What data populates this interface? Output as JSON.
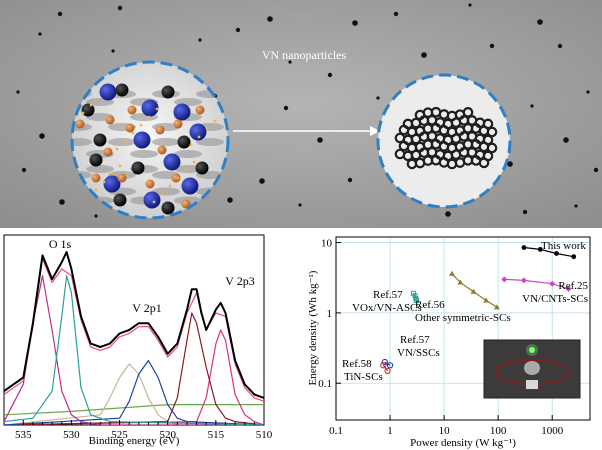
{
  "panel_top": {
    "caption": "VN nanoparticles"
  },
  "chart_data": [
    {
      "type": "line",
      "xlabel": "Binding energy (eV)",
      "ylabel": "",
      "x_reversed": true,
      "xlim": [
        537,
        510
      ],
      "x_ticks": [
        535,
        530,
        525,
        520,
        515,
        510
      ],
      "peak_labels": [
        "O 1s",
        "V 2p1",
        "V 2p3"
      ],
      "series": [
        {
          "color": "#000000",
          "x": [
            537,
            535,
            534,
            533,
            532,
            531,
            530.5,
            530,
            529,
            528,
            527,
            526,
            525,
            524,
            523,
            522,
            521,
            520,
            519,
            518,
            517.5,
            517,
            516.5,
            516,
            515,
            514.5,
            514,
            513,
            512,
            511,
            510
          ],
          "y": [
            10,
            14,
            30,
            50,
            43,
            48,
            51,
            46,
            32,
            24,
            23,
            24,
            27,
            28,
            30,
            30,
            26,
            21,
            24,
            34,
            40,
            40,
            33,
            28,
            34,
            36,
            33,
            19,
            12,
            9,
            8
          ]
        },
        {
          "color": "#e84a8a",
          "x": [
            537,
            535,
            534,
            533,
            532,
            531,
            530,
            529,
            528,
            527,
            526,
            525,
            524,
            523,
            522,
            521,
            520,
            519,
            518,
            517,
            516,
            515,
            514,
            513,
            512,
            511,
            510
          ],
          "y": [
            9,
            13,
            29,
            49,
            42,
            46,
            44,
            31,
            23,
            22,
            23,
            26,
            27,
            29,
            29,
            25,
            20,
            23,
            33,
            39,
            28,
            33,
            32,
            18,
            11,
            8,
            7
          ]
        },
        {
          "color": "#2aa198",
          "x": [
            537,
            534,
            532,
            531,
            530.5,
            530,
            529.5,
            529,
            528,
            526,
            510
          ],
          "y": [
            1,
            2,
            10,
            32,
            44,
            39,
            25,
            11,
            3,
            1,
            0
          ]
        },
        {
          "color": "#c02c8f",
          "x": [
            537,
            535,
            534,
            533,
            532,
            531,
            530,
            529,
            527,
            510
          ],
          "y": [
            1,
            12,
            30,
            44,
            28,
            10,
            3,
            1,
            0,
            0
          ]
        },
        {
          "color": "#1f3fb0",
          "x": [
            537,
            525,
            524,
            523,
            522,
            521,
            520,
            519,
            518,
            510
          ],
          "y": [
            0,
            2,
            7,
            15,
            19,
            14,
            6,
            2,
            1,
            0
          ]
        },
        {
          "color": "#c7b98a",
          "x": [
            537,
            527,
            526,
            525,
            524,
            523,
            522,
            521,
            520,
            519,
            510
          ],
          "y": [
            0,
            3,
            8,
            14,
            18,
            15,
            8,
            3,
            1,
            0,
            0
          ]
        },
        {
          "color": "#8b1a1a",
          "x": [
            537,
            520,
            519,
            518,
            517.5,
            517,
            516,
            515,
            514,
            513,
            510
          ],
          "y": [
            0,
            1,
            8,
            25,
            33,
            30,
            17,
            6,
            2,
            1,
            0
          ]
        },
        {
          "color": "#d63384",
          "x": [
            537,
            517,
            516,
            515,
            514.5,
            514,
            513,
            512,
            511,
            510
          ],
          "y": [
            0,
            1,
            8,
            24,
            28,
            25,
            9,
            3,
            1,
            0
          ]
        },
        {
          "color": "#6aa84f",
          "x": [
            537,
            530,
            525,
            520,
            515,
            510
          ],
          "y": [
            3,
            4,
            5,
            6,
            6,
            6
          ]
        }
      ]
    },
    {
      "type": "scatter",
      "xlabel": "Power density (W kg⁻¹)",
      "ylabel": "Energy density (Wh kg⁻¹)",
      "x_scale": "log",
      "y_scale": "log",
      "xlim": [
        0.1,
        5000
      ],
      "ylim": [
        0.03,
        12
      ],
      "x_ticks": [
        "0.1",
        "1",
        "10",
        "100",
        "1000"
      ],
      "y_ticks": [
        "0.1",
        "1",
        "10"
      ],
      "grid": true,
      "series": [
        {
          "color": "#000000",
          "label": "This work",
          "x": [
            300,
            600,
            1200,
            2500
          ],
          "y": [
            8.5,
            8,
            7,
            6.3
          ]
        },
        {
          "color": "#cc44cc",
          "label": "VN/CNTs-SCs",
          "ref": "Ref.25",
          "x": [
            130,
            300,
            1000,
            2000
          ],
          "y": [
            3,
            2.9,
            2.6,
            2.2
          ]
        },
        {
          "color": "#8b7d2a",
          "label": "Other symmetric-SCs",
          "ref": "Ref.56",
          "x": [
            14,
            20,
            35,
            60,
            95
          ],
          "y": [
            3.6,
            2.7,
            2.0,
            1.5,
            1.2
          ]
        },
        {
          "color": "#2a9d8f",
          "label": "VOx/VN-ASCs",
          "ref": "Ref.57",
          "x": [
            2.7,
            2.9,
            3.0,
            3.1
          ],
          "y": [
            1.9,
            1.75,
            1.6,
            1.5
          ]
        },
        {
          "color": "#1f3fb0",
          "label": "VN/SSCs",
          "ref": "Ref.57",
          "x": [
            0.8,
            1.0
          ],
          "y": [
            0.2,
            0.18
          ]
        },
        {
          "color": "#d62728",
          "label": "TiN-SCs",
          "ref": "Ref.58",
          "x": [
            0.75,
            0.9
          ],
          "y": [
            0.18,
            0.15
          ]
        }
      ]
    }
  ]
}
